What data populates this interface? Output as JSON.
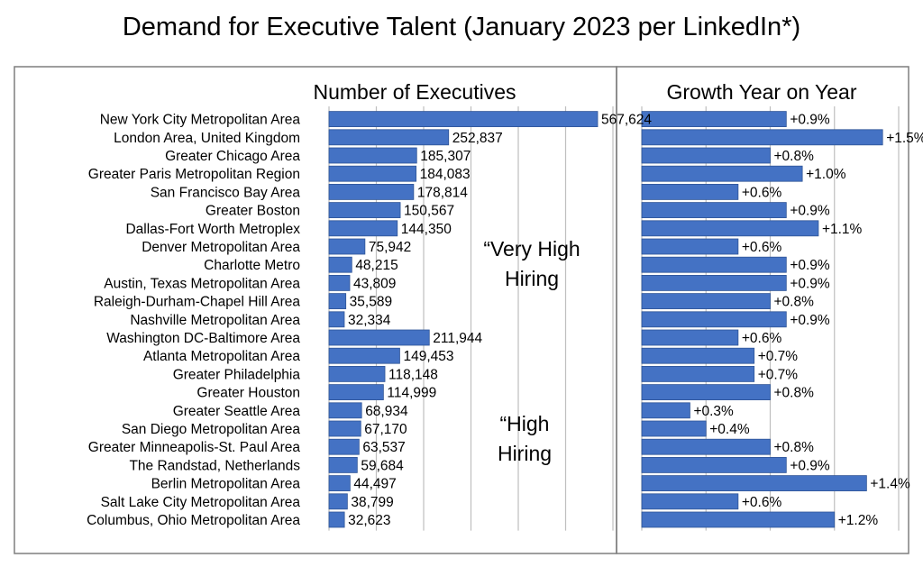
{
  "title": "Demand for Executive Talent (January 2023 per LinkedIn*)",
  "colors": {
    "bar": "#4472c4",
    "bar_edge": "#2f5597",
    "grid": "#bfbfbf",
    "frame": "#7f7f7f"
  },
  "notes": {
    "very_high": [
      "“Very High",
      "Hiring"
    ],
    "high": [
      "“High",
      "Hiring"
    ]
  },
  "chart_data": [
    {
      "type": "bar",
      "orientation": "horizontal",
      "title": "Number of Executives",
      "categories": [
        "New York City Metropolitan Area",
        "London Area, United Kingdom",
        "Greater Chicago Area",
        "Greater Paris Metropolitan Region",
        "San Francisco Bay Area",
        "Greater Boston",
        "Dallas-Fort Worth Metroplex",
        "Denver Metropolitan Area",
        "Charlotte Metro",
        "Austin, Texas Metropolitan Area",
        "Raleigh-Durham-Chapel Hill Area",
        "Nashville Metropolitan Area",
        "Washington DC-Baltimore Area",
        "Atlanta Metropolitan Area",
        "Greater Philadelphia",
        "Greater Houston",
        "Greater Seattle Area",
        "San Diego Metropolitan Area",
        "Greater Minneapolis-St. Paul Area",
        "The Randstad, Netherlands",
        "Berlin Metropolitan Area",
        "Salt Lake City Metropolitan Area",
        "Columbus, Ohio Metropolitan Area"
      ],
      "values": [
        567624,
        252837,
        185307,
        184083,
        178814,
        150567,
        144350,
        75942,
        48215,
        43809,
        35589,
        32334,
        211944,
        149453,
        118148,
        114999,
        68934,
        67170,
        63537,
        59684,
        44497,
        38799,
        32623
      ],
      "labels": [
        "567,624",
        "252,837",
        "185,307",
        "184,083",
        "178,814",
        "150,567",
        "144,350",
        "75,942",
        "48,215",
        "43,809",
        "35,589",
        "32,334",
        "211,944",
        "149,453",
        "118,148",
        "114,999",
        "68,934",
        "67,170",
        "63,537",
        "59,684",
        "44,497",
        "38,799",
        "32,623"
      ],
      "xlim": [
        0,
        600000
      ],
      "grid": true
    },
    {
      "type": "bar",
      "orientation": "horizontal",
      "title": "Growth Year on Year",
      "values": [
        0.9,
        1.5,
        0.8,
        1.0,
        0.6,
        0.9,
        1.1,
        0.6,
        0.9,
        0.9,
        0.8,
        0.9,
        0.6,
        0.7,
        0.7,
        0.8,
        0.3,
        0.4,
        0.8,
        0.9,
        1.4,
        0.6,
        1.2
      ],
      "labels": [
        "+0.9%",
        "+1.5%",
        "+0.8%",
        "+1.0%",
        "+0.6%",
        "+0.9%",
        "+1.1%",
        "+0.6%",
        "+0.9%",
        "+0.9%",
        "+0.8%",
        "+0.9%",
        "+0.6%",
        "+0.7%",
        "+0.7%",
        "+0.8%",
        "+0.3%",
        "+0.4%",
        "+0.8%",
        "+0.9%",
        "+1.4%",
        "+0.6%",
        "+1.2%"
      ],
      "xlim": [
        0,
        1.6
      ],
      "grid": true
    }
  ]
}
